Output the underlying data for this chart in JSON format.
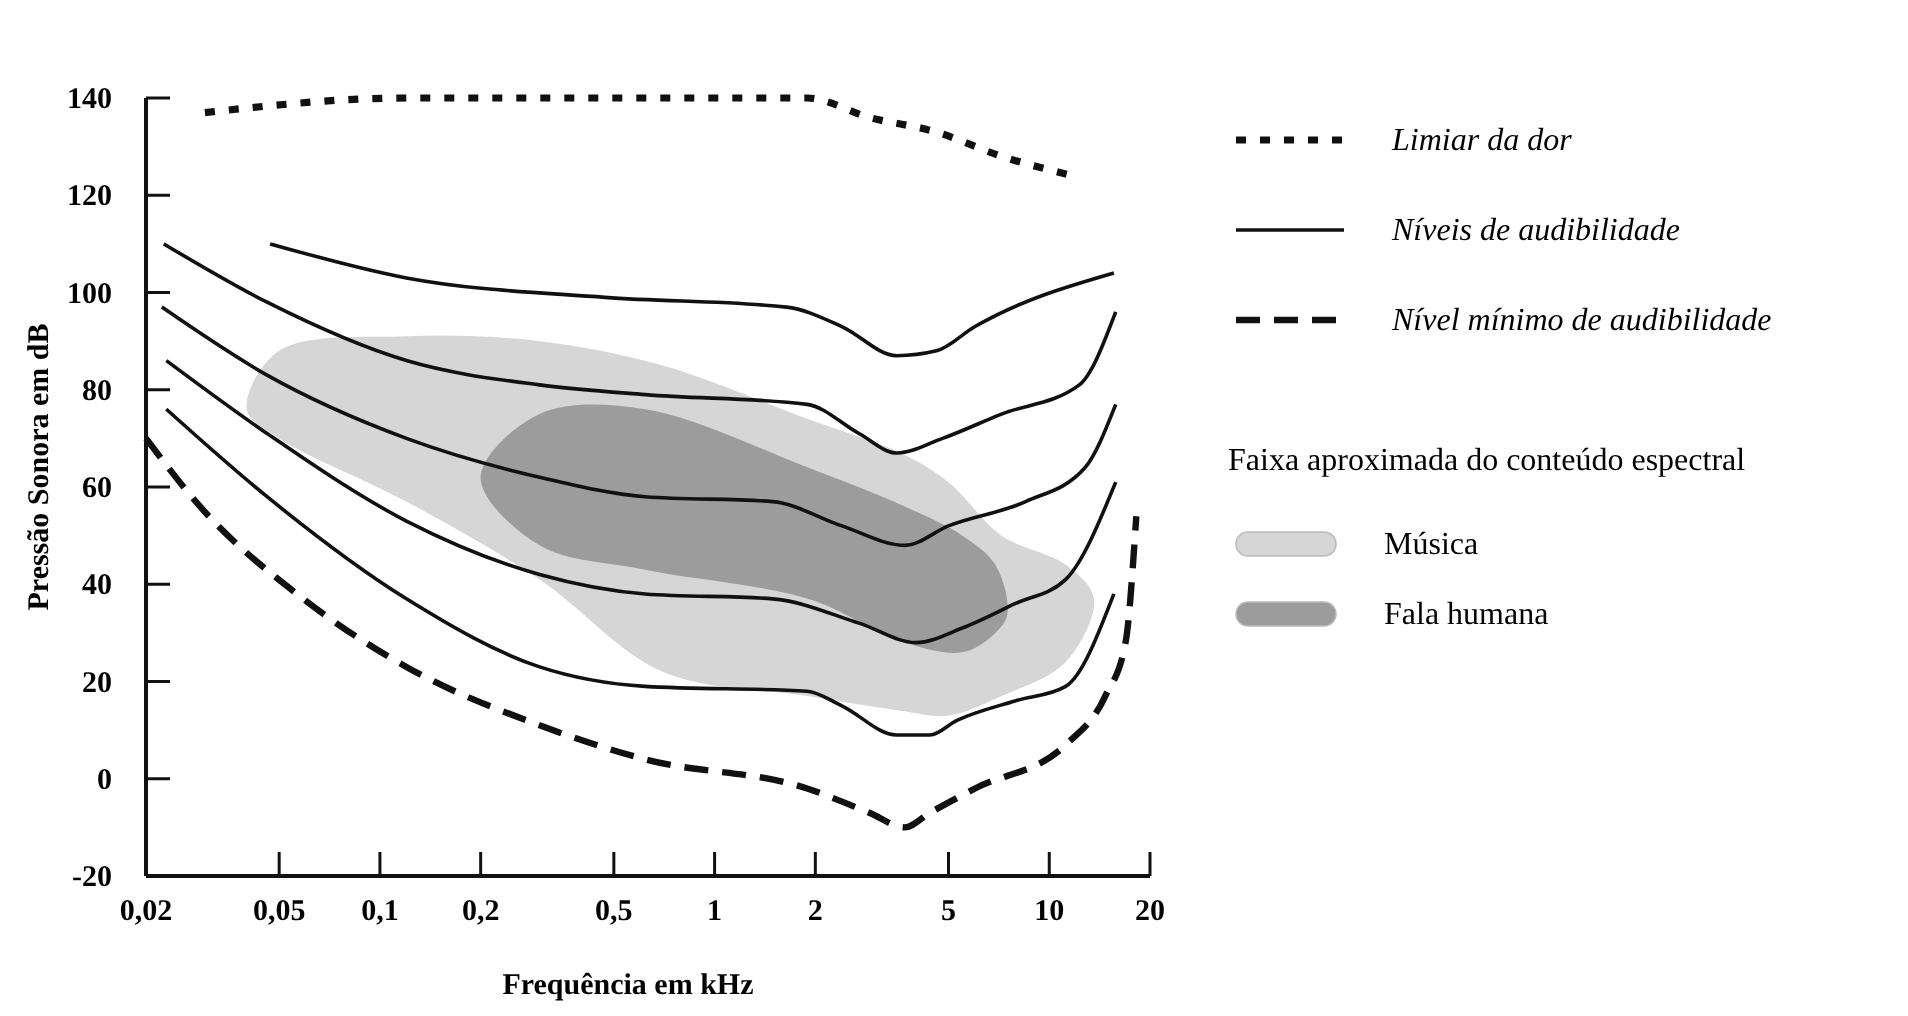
{
  "chart_data": {
    "type": "line",
    "xlabel": "Frequência em kHz",
    "ylabel": "Pressão Sonora em dB",
    "legend_title": "Faixa aproximada do conteúdo espectral",
    "log": "x",
    "legend": "right",
    "xlim": [
      0.02,
      20
    ],
    "ylim": [
      -20,
      140
    ],
    "xticks": [
      {
        "value": 0.02,
        "label": "0,02"
      },
      {
        "value": 0.05,
        "label": "0,05"
      },
      {
        "value": 0.1,
        "label": "0,1"
      },
      {
        "value": 0.2,
        "label": "0,2"
      },
      {
        "value": 0.5,
        "label": "0,5"
      },
      1,
      2,
      5,
      10,
      20
    ],
    "yticks": [
      -20,
      0,
      20,
      40,
      60,
      80,
      100,
      120,
      140
    ],
    "series": [
      {
        "type": "area",
        "name": "Música",
        "color": "#d6d6d6",
        "x": [
          0.04,
          0.05,
          0.12,
          0.3,
          0.7,
          1.9,
          3.6,
          5,
          7.2,
          11.2,
          13.6,
          11.2,
          7.2,
          5,
          3.6,
          1.9,
          0.7,
          0.3,
          0.12,
          0.05
        ],
        "values": [
          76,
          88,
          91,
          90,
          85,
          74,
          67,
          61,
          50,
          44,
          37,
          24,
          17,
          13,
          14,
          17,
          22,
          41,
          57,
          70
        ]
      },
      {
        "type": "area",
        "name": "Fala humana",
        "color": "#9c9c9c",
        "x": [
          0.2,
          0.3,
          0.62,
          1.9,
          3.7,
          5.5,
          6.9,
          7.5,
          6.9,
          5.5,
          3.7,
          1.9,
          0.62,
          0.3
        ],
        "values": [
          62,
          75,
          76,
          64,
          56,
          50,
          44,
          34,
          30,
          26,
          28,
          37,
          43,
          48
        ]
      },
      {
        "name": "Limiar da dor",
        "color": "#111111",
        "line_style": "dotted",
        "x": [
          0.03,
          0.12,
          0.62,
          1.89,
          2.9,
          4.6,
          7.2,
          11.8
        ],
        "values": [
          137,
          140,
          140,
          140,
          136,
          133,
          128,
          124
        ]
      },
      {
        "name": "Níveis de audibilidade",
        "color": "#111111",
        "line_style": "solid",
        "x": [
          0.047,
          0.12,
          0.47,
          1.64,
          2.4,
          3.5,
          4.6,
          6,
          15.6
        ],
        "values": [
          110,
          103,
          99,
          97,
          93,
          87,
          88,
          93,
          104
        ]
      },
      {
        "color": "#111111",
        "line_style": "solid",
        "x": [
          0.0226,
          0.046,
          0.12,
          0.3,
          0.62,
          1.89,
          2.7,
          3.5,
          4.8,
          7.2,
          12.3,
          15.8
        ],
        "values": [
          110,
          98,
          86,
          81,
          79,
          77,
          71,
          67,
          70,
          75,
          81,
          96
        ]
      },
      {
        "color": "#111111",
        "line_style": "solid",
        "x": [
          0.0223,
          0.046,
          0.12,
          0.3,
          0.62,
          1.49,
          2.4,
          3.7,
          5,
          8.5,
          12.8,
          15.8
        ],
        "values": [
          97,
          83,
          70,
          62,
          58,
          57,
          52,
          48,
          52,
          57,
          64,
          77
        ]
      },
      {
        "color": "#111111",
        "line_style": "solid",
        "x": [
          0.023,
          0.046,
          0.12,
          0.3,
          0.62,
          1.49,
          2.7,
          4,
          5.5,
          7.9,
          11.2,
          15.8
        ],
        "values": [
          86,
          71,
          53,
          42,
          38,
          37,
          32,
          28,
          31,
          36,
          41,
          61
        ]
      },
      {
        "color": "#111111",
        "line_style": "solid",
        "x": [
          0.023,
          0.046,
          0.12,
          0.3,
          0.62,
          1.89,
          2.4,
          3.5,
          4.4,
          5.3,
          7.9,
          11.2,
          15.6
        ],
        "values": [
          76,
          58,
          37,
          23,
          19,
          18,
          15,
          9,
          9,
          12,
          16,
          19,
          38
        ]
      },
      {
        "name": "Nível mínimo de audibilidade",
        "color": "#111111",
        "line_style": "dashed",
        "x": [
          0.02,
          0.029,
          0.059,
          0.12,
          0.3,
          0.62,
          1.89,
          2.9,
          3.7,
          4.4,
          6,
          11.2,
          14.7,
          16.9,
          18.2
        ],
        "values": [
          70,
          56,
          37,
          23,
          11,
          4,
          -2,
          -7,
          -10,
          -7,
          -2,
          7,
          17,
          28,
          54
        ]
      }
    ]
  }
}
